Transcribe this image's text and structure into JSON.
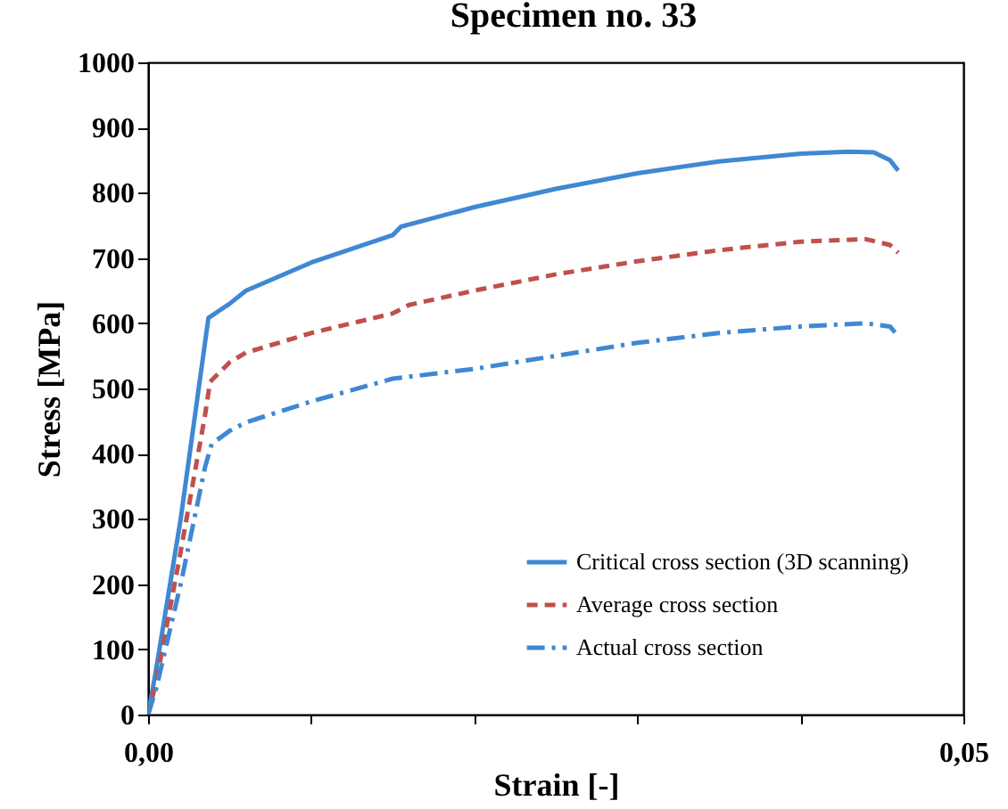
{
  "chart_data": {
    "type": "line",
    "title": "Specimen no. 33",
    "xlabel": "Strain [-]",
    "ylabel": "Stress [MPa]",
    "xlim": [
      0,
      0.05
    ],
    "xticks": [
      {
        "value": 0,
        "label": "0,00"
      },
      {
        "value": 0.01,
        "label": null
      },
      {
        "value": 0.02,
        "label": null
      },
      {
        "value": 0.03,
        "label": null
      },
      {
        "value": 0.04,
        "label": null
      },
      {
        "value": 0.05,
        "label": "0,05"
      }
    ],
    "ylim": [
      0,
      1000
    ],
    "yticks": [
      0,
      100,
      200,
      300,
      400,
      500,
      600,
      700,
      800,
      900,
      1000
    ],
    "grid": false,
    "legend": "bottom right",
    "marker": "none",
    "series": [
      {
        "name": "Critical cross section (3D scanning)",
        "color": "#3f88d3",
        "line_style": "solid",
        "x": [
          0,
          0.0005,
          0.002,
          0.0037,
          0.005,
          0.006,
          0.01,
          0.015,
          0.0155,
          0.02,
          0.025,
          0.03,
          0.035,
          0.04,
          0.043,
          0.0445,
          0.0455,
          0.046
        ],
        "values": [
          0,
          70,
          300,
          608,
          630,
          650,
          693,
          735,
          748,
          778,
          806,
          830,
          848,
          860,
          863,
          862,
          850,
          834
        ]
      },
      {
        "name": "Average cross section",
        "color": "#c0504d",
        "line_style": "dashed",
        "x": [
          0,
          0.0005,
          0.002,
          0.0035,
          0.0038,
          0.005,
          0.006,
          0.01,
          0.015,
          0.016,
          0.02,
          0.025,
          0.03,
          0.035,
          0.04,
          0.044,
          0.0455,
          0.046
        ],
        "values": [
          0,
          50,
          250,
          460,
          510,
          540,
          555,
          585,
          615,
          628,
          650,
          675,
          695,
          712,
          725,
          729,
          720,
          708
        ]
      },
      {
        "name": "Actual cross section",
        "color": "#3f88d3",
        "line_style": "dashdot",
        "x": [
          0,
          0.0005,
          0.002,
          0.0035,
          0.0039,
          0.005,
          0.006,
          0.01,
          0.015,
          0.02,
          0.025,
          0.03,
          0.035,
          0.04,
          0.044,
          0.0455,
          0.046
        ],
        "values": [
          0,
          40,
          200,
          380,
          415,
          435,
          448,
          480,
          515,
          530,
          550,
          570,
          585,
          595,
          600,
          595,
          580
        ]
      }
    ]
  }
}
